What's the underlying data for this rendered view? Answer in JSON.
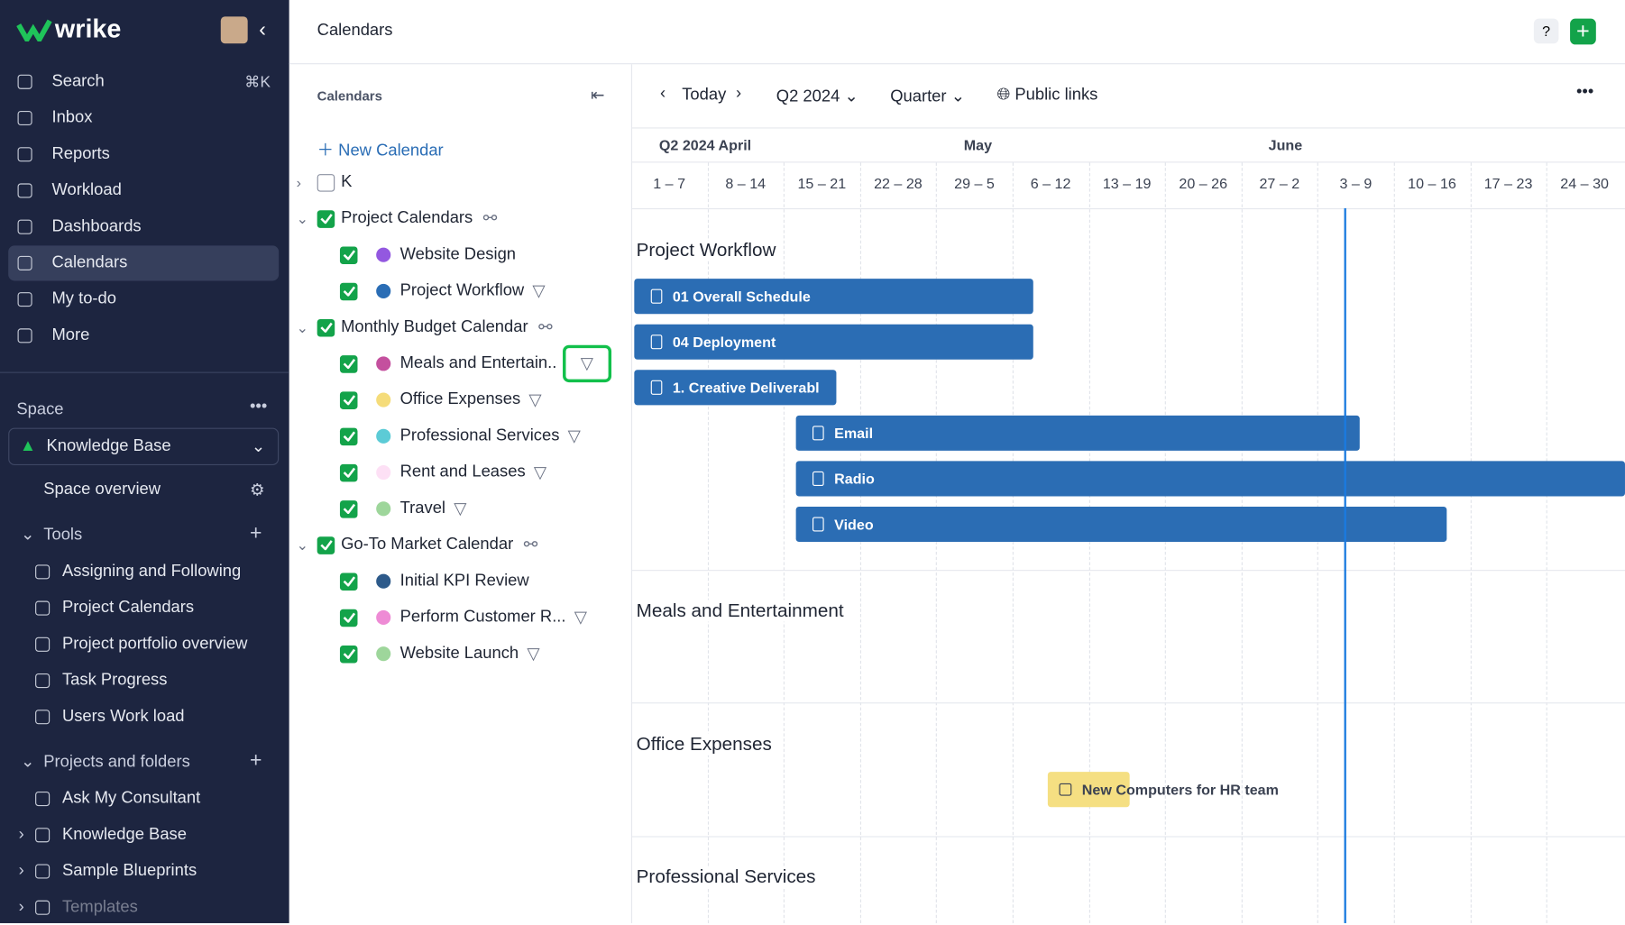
{
  "sidebar": {
    "logo": "wrike",
    "nav": [
      {
        "label": "Search",
        "shortcut": "⌘K"
      },
      {
        "label": "Inbox"
      },
      {
        "label": "Reports"
      },
      {
        "label": "Workload"
      },
      {
        "label": "Dashboards"
      },
      {
        "label": "Calendars",
        "selected": true
      },
      {
        "label": "My to-do"
      },
      {
        "label": "More"
      }
    ],
    "space_label": "Space",
    "space": "Knowledge Base",
    "space_overview": "Space overview",
    "tools": {
      "title": "Tools",
      "items": [
        "Assigning and Following",
        "Project Calendars",
        "Project portfolio overview",
        "Task Progress",
        "Users Work load"
      ]
    },
    "projects": {
      "title": "Projects and folders",
      "items": [
        "Ask My Consultant",
        "Knowledge Base",
        "Sample Blueprints",
        "Templates"
      ]
    }
  },
  "header": {
    "title": "Calendars"
  },
  "calendars_panel": {
    "title": "Calendars",
    "new_calendar": "New Calendar",
    "tree": [
      {
        "label": "K",
        "checked": false,
        "children": []
      },
      {
        "label": "Project Calendars",
        "checked": true,
        "shared": true,
        "children": [
          {
            "label": "Website Design",
            "color": "#9358e0"
          },
          {
            "label": "Project Workflow",
            "color": "#2a6db5",
            "filter": true
          }
        ]
      },
      {
        "label": "Monthly Budget Calendar",
        "checked": true,
        "shared": true,
        "children": [
          {
            "label": "Meals and Entertain..",
            "color": "#c4509e",
            "filter": true,
            "highlighted": true
          },
          {
            "label": "Office Expenses",
            "color": "#f5dc7a",
            "filter": true
          },
          {
            "label": "Professional Services",
            "color": "#5ccbd6",
            "filter": true
          },
          {
            "label": "Rent and Leases",
            "color": "#fde0f5",
            "filter": true
          },
          {
            "label": "Travel",
            "color": "#9ed69b",
            "filter": true
          }
        ]
      },
      {
        "label": "Go-To Market Calendar",
        "checked": true,
        "shared": true,
        "children": [
          {
            "label": "Initial KPI Review",
            "color": "#2d5a8a"
          },
          {
            "label": "Perform Customer R...",
            "color": "#ee8bd5",
            "filter": true
          },
          {
            "label": "Website Launch",
            "color": "#9ed69b",
            "filter": true
          }
        ]
      }
    ]
  },
  "toolbar": {
    "today": "Today",
    "period": "Q2 2024",
    "scale": "Quarter",
    "public_links": "Public links"
  },
  "timeline": {
    "months": [
      "Q2 2024 April",
      "May",
      "June"
    ],
    "weeks": [
      "1 – 7",
      "8 – 14",
      "15 – 21",
      "22 – 28",
      "29 – 5",
      "6 – 12",
      "13 – 19",
      "20 – 26",
      "27 – 2",
      "3 – 9",
      "10 – 16",
      "17 – 23",
      "24 – 30"
    ],
    "sections": [
      {
        "title": "Project Workflow",
        "items": [
          "01 Overall Schedule",
          "04 Deployment",
          "1. Creative Deliverabl",
          "Email",
          "Radio",
          "Video"
        ]
      },
      {
        "title": "Meals and Entertainment",
        "items": []
      },
      {
        "title": "Office Expenses",
        "items": [
          "New Computers for HR team"
        ]
      },
      {
        "title": "Professional Services",
        "items": []
      }
    ]
  }
}
